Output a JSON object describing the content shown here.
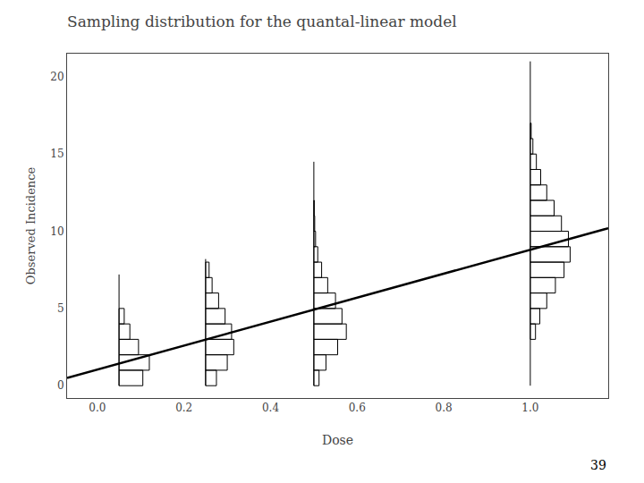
{
  "chart_data": {
    "type": "histogram",
    "title": "Sampling distribution for the quantal-linear model",
    "xlabel": "Dose",
    "ylabel": "Observed Incidence",
    "annotations": [
      "39"
    ],
    "xlim": [
      -0.07,
      1.18
    ],
    "ylim": [
      -0.8,
      21.5
    ],
    "xticks": [
      {
        "value": 0.0,
        "label": "0.0"
      },
      0.2,
      0.4,
      0.6,
      0.8,
      {
        "value": 1.0,
        "label": "1.0"
      }
    ],
    "yticks": [
      0,
      5,
      10,
      15,
      20
    ],
    "grid": false,
    "series": [
      {
        "type": "line",
        "color": "#000000",
        "x": [
          -0.07,
          1.18
        ],
        "values": [
          0.5,
          10.2
        ]
      },
      {
        "type": "histogram",
        "color": "#000000",
        "x": 0.05,
        "spike": [
          0,
          7.2
        ],
        "bins": [
          0,
          1,
          2,
          3,
          4,
          5
        ],
        "values": [
          0.055,
          0.07,
          0.045,
          0.025,
          0.012
        ]
      },
      {
        "type": "histogram",
        "color": "#000000",
        "x": 0.25,
        "spike": [
          0,
          8.2
        ],
        "bins": [
          0,
          1,
          2,
          3,
          4,
          5,
          6,
          7,
          8
        ],
        "values": [
          0.025,
          0.05,
          0.065,
          0.06,
          0.045,
          0.03,
          0.015,
          0.008
        ]
      },
      {
        "type": "histogram",
        "color": "#000000",
        "x": 0.5,
        "spike": [
          0,
          14.5
        ],
        "bins": [
          0,
          1,
          2,
          3,
          4,
          5,
          6,
          7,
          8,
          9,
          10,
          11,
          12
        ],
        "values": [
          0.012,
          0.028,
          0.055,
          0.075,
          0.065,
          0.05,
          0.032,
          0.018,
          0.009,
          0.004,
          0.002,
          0.001
        ]
      },
      {
        "type": "histogram",
        "color": "#000000",
        "x": 1.0,
        "spike": [
          0,
          21.0
        ],
        "bins": [
          3,
          4,
          5,
          6,
          7,
          8,
          9,
          10,
          11,
          12,
          13,
          14,
          15,
          16,
          17
        ],
        "values": [
          0.012,
          0.022,
          0.038,
          0.058,
          0.078,
          0.092,
          0.088,
          0.072,
          0.055,
          0.038,
          0.024,
          0.014,
          0.006,
          0.002
        ]
      }
    ]
  }
}
